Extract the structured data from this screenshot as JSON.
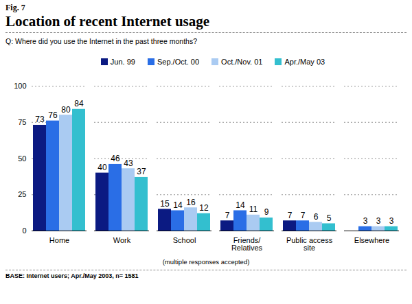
{
  "chart_data": {
    "type": "bar",
    "figure_label": "Fig. 7",
    "title": "Location of recent Internet usage",
    "subtitle": "Q: Where did you use the Internet in the past three months?",
    "caption": "(multiple responses accepted)",
    "source": "BASE: Internet users; Apr./May 2003, n= 1581",
    "categories": [
      "Home",
      "Work",
      "School",
      "Friends/ Relatives",
      "Public access site",
      "Elsewhere"
    ],
    "series": [
      {
        "name": "Jun. 99",
        "color": "#0b1a82",
        "values": [
          73,
          40,
          15,
          7,
          7,
          null
        ]
      },
      {
        "name": "Sep./Oct. 00",
        "color": "#2a6ee6",
        "values": [
          76,
          46,
          14,
          14,
          7,
          3
        ]
      },
      {
        "name": "Oct./Nov. 01",
        "color": "#aacbf2",
        "values": [
          80,
          43,
          16,
          11,
          6,
          3
        ]
      },
      {
        "name": "Apr./May 03",
        "color": "#33bfcf",
        "values": [
          84,
          37,
          12,
          9,
          5,
          3
        ]
      }
    ],
    "ylim": [
      0,
      100
    ],
    "yticks": [
      0,
      25,
      50,
      75,
      100
    ],
    "grid": true,
    "legend": "top",
    "data_labels": true
  }
}
